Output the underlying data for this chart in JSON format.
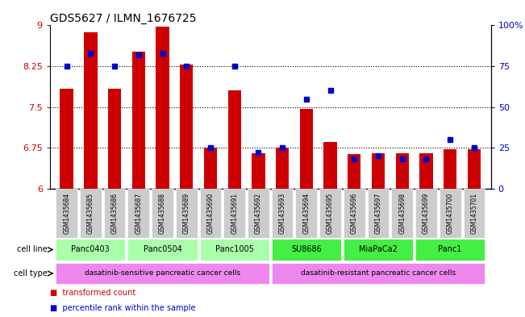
{
  "title": "GDS5627 / ILMN_1676725",
  "samples": [
    "GSM1435684",
    "GSM1435685",
    "GSM1435686",
    "GSM1435687",
    "GSM1435688",
    "GSM1435689",
    "GSM1435690",
    "GSM1435691",
    "GSM1435692",
    "GSM1435693",
    "GSM1435694",
    "GSM1435695",
    "GSM1435696",
    "GSM1435697",
    "GSM1435698",
    "GSM1435699",
    "GSM1435700",
    "GSM1435701"
  ],
  "red_values": [
    7.83,
    8.87,
    7.83,
    8.52,
    8.97,
    8.28,
    6.75,
    7.8,
    6.65,
    6.75,
    7.47,
    6.85,
    6.63,
    6.65,
    6.65,
    6.65,
    6.72,
    6.72
  ],
  "blue_values": [
    75,
    83,
    75,
    82,
    83,
    75,
    25,
    75,
    22,
    25,
    55,
    60,
    18,
    20,
    18,
    18,
    30,
    25
  ],
  "ylim_left": [
    6,
    9
  ],
  "ylim_right": [
    0,
    100
  ],
  "yticks_left": [
    6,
    6.75,
    7.5,
    8.25,
    9
  ],
  "yticks_right": [
    0,
    25,
    50,
    75,
    100
  ],
  "cell_lines": [
    {
      "name": "Panc0403",
      "start": 0,
      "end": 2,
      "color": "#aaffaa"
    },
    {
      "name": "Panc0504",
      "start": 3,
      "end": 5,
      "color": "#aaffaa"
    },
    {
      "name": "Panc1005",
      "start": 6,
      "end": 8,
      "color": "#aaffaa"
    },
    {
      "name": "SU8686",
      "start": 9,
      "end": 11,
      "color": "#44ee44"
    },
    {
      "name": "MiaPaCa2",
      "start": 12,
      "end": 14,
      "color": "#44ee44"
    },
    {
      "name": "Panc1",
      "start": 15,
      "end": 17,
      "color": "#44ee44"
    }
  ],
  "cell_types": [
    {
      "name": "dasatinib-sensitive pancreatic cancer cells",
      "start": 0,
      "end": 8
    },
    {
      "name": "dasatinib-resistant pancreatic cancer cells",
      "start": 9,
      "end": 17
    }
  ],
  "cell_type_color": "#ee88ee",
  "bar_color": "#cc0000",
  "dot_color": "#0000cc",
  "bar_width": 0.55,
  "bg_color": "#ffffff",
  "sample_box_color": "#cccccc",
  "label_red": "transformed count",
  "label_blue": "percentile rank within the sample",
  "tick_label_color_left": "#cc0000",
  "tick_label_color_right": "#0000cc"
}
